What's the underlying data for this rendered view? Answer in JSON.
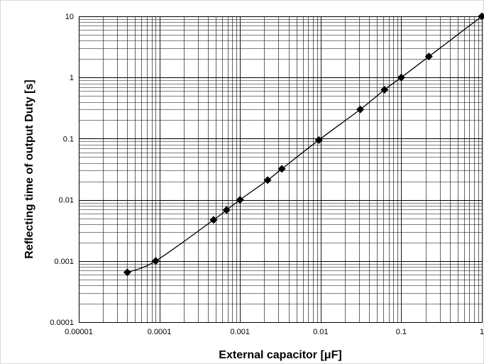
{
  "chart_data": {
    "type": "scatter",
    "title": "",
    "xlabel": "External capacitor [μF]",
    "ylabel": "Reflecting time of output Duty [s]",
    "x_scale": "log",
    "y_scale": "log",
    "xlim": [
      1e-05,
      1
    ],
    "ylim": [
      0.0001,
      10
    ],
    "x_ticks": [
      "0.00001",
      "0.0001",
      "0.001",
      "0.01",
      "0.1",
      "1"
    ],
    "y_ticks": [
      "0.0001",
      "0.001",
      "0.01",
      "0.1",
      "1",
      "10"
    ],
    "grid": true,
    "legend": "none",
    "colors": {
      "series": "#000000",
      "grid": "#000000",
      "background": "#ffffff"
    },
    "series": [
      {
        "points": [
          {
            "x": 4e-05,
            "y": 0.00065
          },
          {
            "x": 9e-05,
            "y": 0.001
          },
          {
            "x": 0.00047,
            "y": 0.0047
          },
          {
            "x": 0.00068,
            "y": 0.0068
          },
          {
            "x": 0.001,
            "y": 0.01
          },
          {
            "x": 0.0022,
            "y": 0.021
          },
          {
            "x": 0.0033,
            "y": 0.032
          },
          {
            "x": 0.0095,
            "y": 0.095
          },
          {
            "x": 0.031,
            "y": 0.3
          },
          {
            "x": 0.062,
            "y": 0.63
          },
          {
            "x": 0.1,
            "y": 1
          },
          {
            "x": 0.22,
            "y": 2.2
          },
          {
            "x": 1,
            "y": 10
          }
        ]
      }
    ]
  }
}
